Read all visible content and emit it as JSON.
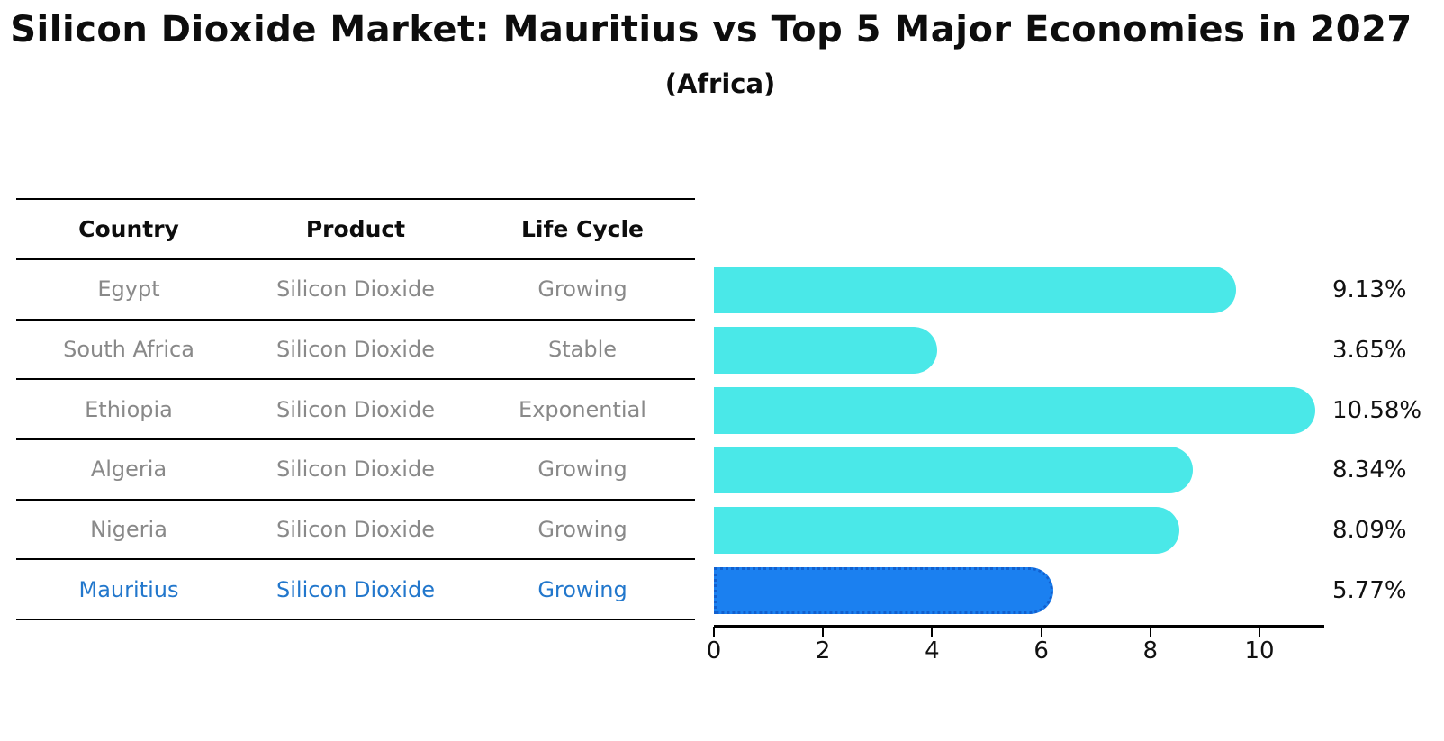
{
  "title": "Silicon Dioxide Market: Mauritius vs Top 5 Major Economies in 2027",
  "subtitle": "(Africa)",
  "table": {
    "headers": [
      "Country",
      "Product",
      "Life Cycle"
    ],
    "rows": [
      {
        "country": "Egypt",
        "product": "Silicon Dioxide",
        "life_cycle": "Growing",
        "highlight": false
      },
      {
        "country": "South Africa",
        "product": "Silicon Dioxide",
        "life_cycle": "Stable",
        "highlight": false
      },
      {
        "country": "Ethiopia",
        "product": "Silicon Dioxide",
        "life_cycle": "Exponential",
        "highlight": false
      },
      {
        "country": "Algeria",
        "product": "Silicon Dioxide",
        "life_cycle": "Growing",
        "highlight": false
      },
      {
        "country": "Nigeria",
        "product": "Silicon Dioxide",
        "life_cycle": "Growing",
        "highlight": true
      }
    ]
  },
  "chart_data": {
    "type": "bar",
    "orientation": "horizontal",
    "title": "Silicon Dioxide Market: Mauritius vs Top 5 Major Economies in 2027",
    "subtitle": "(Africa)",
    "categories": [
      "Egypt",
      "South Africa",
      "Ethiopia",
      "Algeria",
      "Nigeria",
      "Mauritius"
    ],
    "values": [
      9.13,
      3.65,
      10.58,
      8.34,
      8.09,
      5.77
    ],
    "value_labels": [
      "9.13%",
      "3.65%",
      "10.58%",
      "8.34%",
      "8.09%",
      "5.77%"
    ],
    "highlight_index": 5,
    "x_ticks": [
      "0",
      "2",
      "4",
      "6",
      "8",
      "10"
    ],
    "x_tick_values": [
      0,
      2,
      4,
      6,
      8,
      10
    ],
    "xlim": [
      0,
      11.15
    ],
    "grid": false,
    "legend": false,
    "xlabel": "",
    "ylabel": ""
  },
  "colors": {
    "bar_default": "#4AE8E8",
    "bar_highlight": "#1B80F0",
    "bar_highlight_border": "#1260CF",
    "highlight_text": "#2277CC",
    "table_text": "#898989",
    "axis": "#000000",
    "title_text": "#0d0d0d"
  }
}
